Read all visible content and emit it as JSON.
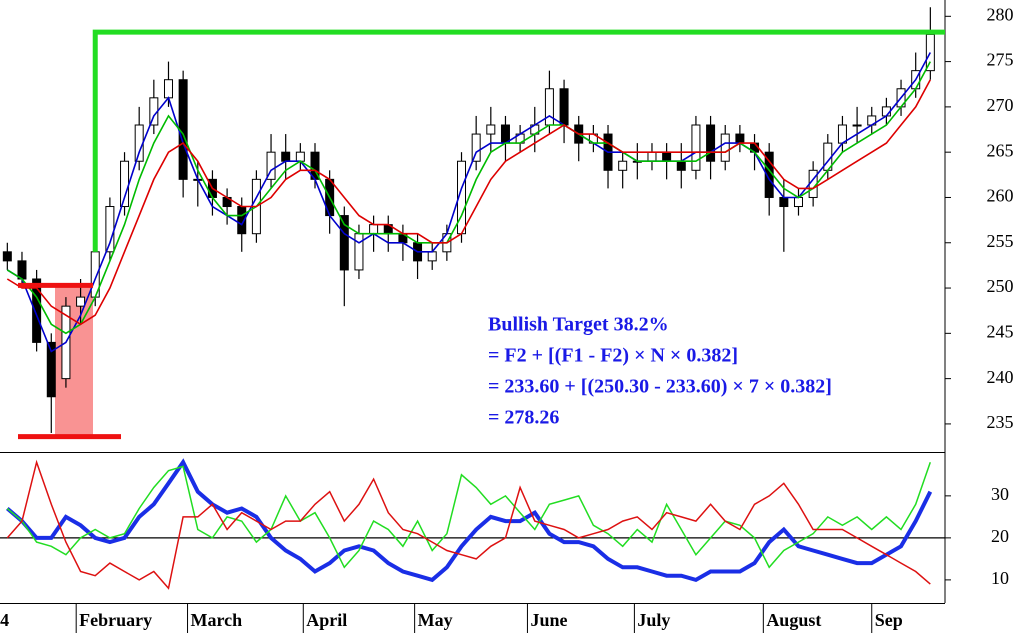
{
  "chart_data": [
    {
      "type": "candlestick",
      "open": [
        254,
        253,
        251,
        244,
        240,
        248,
        249,
        254,
        259,
        264,
        268,
        271,
        273,
        262,
        262,
        260,
        259,
        256,
        262,
        265,
        264,
        265,
        262,
        258,
        252,
        256,
        257,
        256,
        255,
        253,
        254,
        256,
        264,
        267,
        268,
        266,
        267,
        268,
        272,
        268,
        266,
        267,
        263,
        264,
        264,
        265,
        264,
        263,
        268,
        264,
        267,
        266,
        265,
        260,
        259,
        260,
        263,
        266,
        268,
        268,
        269,
        270,
        272,
        274
      ],
      "high": [
        255,
        254,
        252,
        245,
        249,
        251,
        255,
        260,
        265,
        270,
        273,
        275,
        274,
        264,
        263,
        261,
        260,
        263,
        267,
        267,
        266,
        266,
        263,
        259,
        257,
        258,
        258,
        257,
        256,
        255,
        257,
        265,
        269,
        270,
        269,
        268,
        270,
        274,
        273,
        269,
        268,
        268,
        265,
        266,
        266,
        266,
        266,
        269,
        269,
        268,
        268,
        267,
        266,
        262,
        261,
        264,
        267,
        269,
        270,
        270,
        271,
        273,
        276,
        281
      ],
      "low": [
        252,
        250,
        243,
        234,
        239,
        246,
        248,
        253,
        258,
        263,
        267,
        270,
        260,
        259,
        258,
        257,
        254,
        255,
        261,
        262,
        263,
        261,
        256,
        248,
        251,
        254,
        254,
        253,
        251,
        252,
        253,
        255,
        263,
        265,
        264,
        265,
        265,
        267,
        266,
        264,
        265,
        261,
        261,
        262,
        263,
        262,
        261,
        262,
        262,
        263,
        265,
        263,
        258,
        254,
        258,
        259,
        262,
        265,
        266,
        267,
        268,
        269,
        271,
        273
      ],
      "close": [
        253,
        251,
        244,
        238,
        248,
        249,
        254,
        259,
        264,
        268,
        271,
        273,
        262,
        262,
        260,
        259,
        256,
        262,
        265,
        264,
        265,
        262,
        258,
        252,
        256,
        257,
        256,
        255,
        253,
        254,
        256,
        264,
        267,
        268,
        266,
        267,
        268,
        272,
        268,
        266,
        267,
        263,
        264,
        264,
        265,
        264,
        263,
        268,
        264,
        267,
        266,
        265,
        260,
        259,
        260,
        263,
        266,
        268,
        268,
        269,
        270,
        272,
        274,
        278
      ],
      "series": [
        {
          "color": "#0000cc",
          "values": [
            252,
            251,
            247,
            243,
            244,
            247,
            251,
            255,
            260,
            265,
            269,
            271,
            266,
            262,
            259,
            258,
            257,
            260,
            263,
            264,
            264,
            262,
            258,
            256,
            255,
            256,
            255,
            255,
            254,
            254,
            256,
            261,
            265,
            266,
            266,
            267,
            268,
            269,
            268,
            267,
            266,
            265,
            265,
            264,
            264,
            264,
            264,
            265,
            265,
            266,
            266,
            265,
            262,
            260,
            260,
            262,
            264,
            266,
            267,
            268,
            269,
            271,
            273,
            276
          ]
        },
        {
          "color": "#00bb00",
          "values": [
            252,
            251,
            249,
            246,
            245,
            246,
            249,
            253,
            257,
            262,
            266,
            269,
            267,
            263,
            260,
            258,
            258,
            259,
            261,
            263,
            264,
            263,
            260,
            257,
            256,
            256,
            256,
            256,
            255,
            255,
            255,
            258,
            262,
            265,
            266,
            266,
            267,
            268,
            268,
            267,
            266,
            266,
            265,
            264,
            264,
            264,
            264,
            264,
            265,
            265,
            266,
            265,
            263,
            261,
            260,
            261,
            263,
            265,
            266,
            267,
            268,
            270,
            272,
            275
          ]
        },
        {
          "color": "#dd0000",
          "values": [
            251,
            250,
            250,
            248,
            247,
            246,
            247,
            250,
            254,
            258,
            262,
            265,
            266,
            264,
            261,
            260,
            259,
            259,
            260,
            262,
            263,
            263,
            262,
            260,
            258,
            257,
            257,
            256,
            256,
            255,
            255,
            256,
            259,
            262,
            264,
            265,
            266,
            267,
            268,
            267,
            267,
            266,
            265,
            265,
            265,
            265,
            265,
            265,
            265,
            265,
            266,
            266,
            264,
            262,
            261,
            261,
            262,
            263,
            264,
            265,
            266,
            268,
            270,
            273
          ]
        }
      ],
      "xlim": [
        -0.5,
        64
      ],
      "ylim": [
        231.9,
        281.8
      ],
      "yticks": [
        235,
        240,
        245,
        250,
        255,
        260,
        265,
        270,
        275,
        280
      ],
      "levels": {
        "f1": 250.3,
        "f2": 233.6,
        "target": 278.26,
        "f1_color": "#ee1111",
        "target_color": "#22dd22",
        "zone_color": "#f88080"
      },
      "annotation": [
        "Bullish Target 38.2%",
        "= F2 + [(F1 - F2) × N × 0.382]",
        "= 233.60 + [(250.30 - 233.60) × 7 × 0.382]",
        "= 278.26"
      ],
      "annotation_color": "#1a1ae6"
    },
    {
      "type": "line",
      "series": [
        {
          "color": "#1a2ee6",
          "values": [
            27,
            24,
            20,
            20,
            25,
            23,
            20,
            19,
            20,
            25,
            28,
            33,
            38,
            31,
            28,
            26,
            27,
            25,
            20,
            17,
            15,
            12,
            14,
            17,
            18,
            17,
            14,
            12,
            11,
            10,
            13,
            18,
            22,
            25,
            24,
            24,
            26,
            21,
            19,
            19,
            18,
            15,
            13,
            13,
            12,
            11,
            11,
            10,
            12,
            12,
            12,
            14,
            19,
            22,
            18,
            17,
            16,
            15,
            14,
            14,
            16,
            18,
            24,
            31
          ]
        },
        {
          "color": "#22dd22",
          "values": [
            27,
            24,
            19,
            18,
            16,
            20,
            22,
            20,
            21,
            27,
            32,
            36,
            37,
            22,
            20,
            25,
            24,
            19,
            22,
            30,
            24,
            26,
            20,
            13,
            17,
            24,
            22,
            18,
            24,
            17,
            21,
            35,
            32,
            28,
            30,
            26,
            22,
            28,
            29,
            30,
            23,
            21,
            18,
            22,
            19,
            28,
            22,
            16,
            20,
            24,
            23,
            20,
            13,
            17,
            19,
            21,
            25,
            23,
            25,
            22,
            25,
            22,
            28,
            38
          ]
        },
        {
          "color": "#dd1111",
          "values": [
            20,
            24,
            38,
            28,
            19,
            12,
            11,
            14,
            12,
            10,
            12,
            8,
            25,
            25,
            28,
            22,
            26,
            24,
            22,
            24,
            24,
            28,
            31,
            24,
            28,
            34,
            26,
            22,
            21,
            19,
            17,
            16,
            15,
            18,
            20,
            32,
            24,
            23,
            22,
            20,
            21,
            22,
            24,
            25,
            22,
            26,
            25,
            24,
            28,
            24,
            22,
            28,
            30,
            33,
            28,
            22,
            22,
            22,
            20,
            18,
            16,
            14,
            12,
            9
          ]
        }
      ],
      "xlim": [
        -0.5,
        64
      ],
      "ylim": [
        4.5,
        40.2
      ],
      "yticks": [
        10,
        20,
        30
      ],
      "reference_line": 20,
      "xticks": [
        {
          "value": -0.7,
          "label": "4"
        },
        {
          "value": 4.7,
          "label": "February"
        },
        {
          "value": 12.3,
          "label": "March"
        },
        {
          "value": 20.2,
          "label": "April"
        },
        {
          "value": 27.8,
          "label": "May"
        },
        {
          "value": 35.5,
          "label": "June"
        },
        {
          "value": 42.8,
          "label": "July"
        },
        {
          "value": 51.6,
          "label": "August"
        },
        {
          "value": 59.0,
          "label": "Sep"
        }
      ]
    }
  ]
}
